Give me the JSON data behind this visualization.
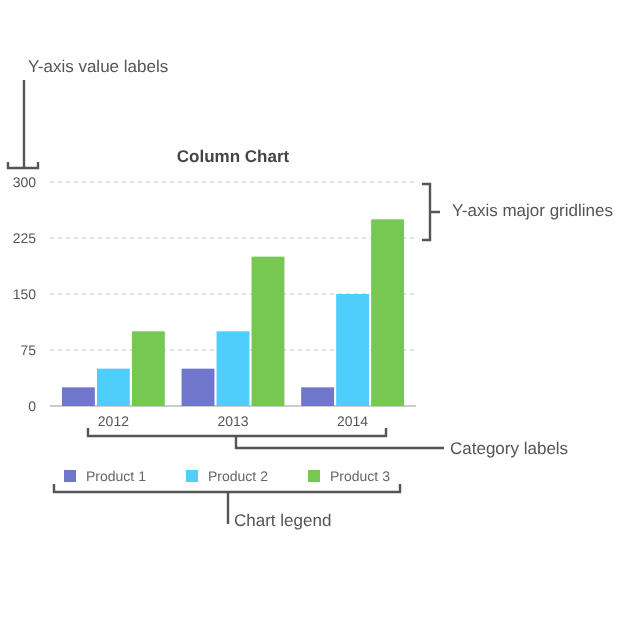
{
  "chart_data": {
    "type": "bar",
    "title": "Column Chart",
    "categories": [
      "2012",
      "2013",
      "2014"
    ],
    "series": [
      {
        "name": "Product 1",
        "color": "#7076cc",
        "values": [
          25,
          50,
          25
        ]
      },
      {
        "name": "Product 2",
        "color": "#4fcdfb",
        "values": [
          50,
          100,
          150
        ]
      },
      {
        "name": "Product 3",
        "color": "#77c753",
        "values": [
          100,
          200,
          250
        ]
      }
    ],
    "ylim": [
      0,
      300
    ],
    "yticks": [
      0,
      75,
      150,
      225,
      300
    ],
    "grid": "y",
    "legend": "bottom",
    "annotations": [
      "Y-axis value labels",
      "Y-axis major gridlines",
      "Category labels",
      "Chart legend"
    ]
  }
}
